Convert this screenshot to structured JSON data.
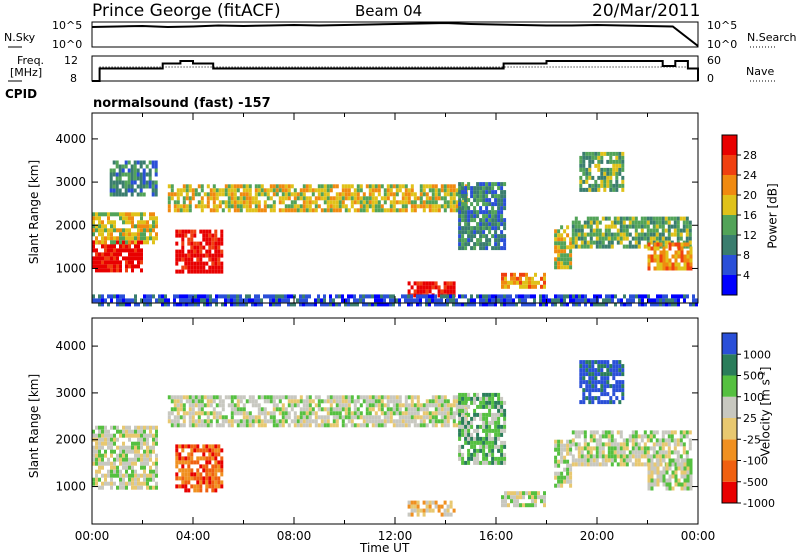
{
  "header": {
    "station": "Prince George (fitACF)",
    "beam": "Beam 04",
    "date": "20/Mar/2011"
  },
  "top_panels": {
    "nsky_label": "N.Sky",
    "nsky_ticks": [
      "10^5",
      "10^0"
    ],
    "nsearch_label": "N.Search",
    "nsearch_ticks": [
      "10^5",
      "10^0"
    ],
    "freq_label": "Freq.",
    "freq_unit": "[MHz]",
    "freq_ticks": [
      "12",
      "8"
    ],
    "nave_label": "Nave",
    "nave_ticks": [
      "60",
      "0"
    ],
    "cpid_label": "CPID",
    "cpid_name": "normalsound (fast) -157"
  },
  "chart_data": [
    {
      "type": "heatmap",
      "name": "power",
      "ylabel": "Slant Range [km]",
      "yticks": [
        1000,
        2000,
        3000,
        4000
      ],
      "ylim": [
        200,
        4600
      ],
      "xlim": [
        0,
        24
      ],
      "colorbar_label": "Power [dB]",
      "colorbar_ticks": [
        "4",
        "8",
        "12",
        "16",
        "20",
        "24",
        "28"
      ],
      "colors": [
        "#0000ff",
        "#2a4fd8",
        "#3a7d6e",
        "#52a358",
        "#e0c21a",
        "#f08a10",
        "#f04010",
        "#e80000"
      ],
      "echo_regions": [
        {
          "t0": 0.0,
          "t1": 2.0,
          "r0": 1000,
          "r1": 1650,
          "level": 7
        },
        {
          "t0": 0.0,
          "t1": 2.6,
          "r0": 1600,
          "r1": 2300,
          "level": 4
        },
        {
          "t0": 0.7,
          "t1": 2.5,
          "r0": 2700,
          "r1": 3500,
          "level": 2
        },
        {
          "t0": 3.3,
          "t1": 5.2,
          "r0": 900,
          "r1": 1900,
          "level": 7
        },
        {
          "t0": 3.0,
          "t1": 14.8,
          "r0": 2350,
          "r1": 2950,
          "level": 4
        },
        {
          "t0": 14.5,
          "t1": 16.3,
          "r0": 1500,
          "r1": 3000,
          "level": 2
        },
        {
          "t0": 12.5,
          "t1": 14.3,
          "r0": 400,
          "r1": 700,
          "level": 7
        },
        {
          "t0": 16.2,
          "t1": 17.9,
          "r0": 600,
          "r1": 900,
          "level": 5
        },
        {
          "t0": 18.3,
          "t1": 19.0,
          "r0": 1000,
          "r1": 2000,
          "level": 4
        },
        {
          "t0": 19.0,
          "t1": 23.7,
          "r0": 1500,
          "r1": 2200,
          "level": 3
        },
        {
          "t0": 19.3,
          "t1": 21.0,
          "r0": 2800,
          "r1": 3700,
          "level": 3
        },
        {
          "t0": 22.0,
          "t1": 23.7,
          "r0": 1000,
          "r1": 1600,
          "level": 5
        },
        {
          "t0": 0.0,
          "t1": 24.0,
          "r0": 200,
          "r1": 400,
          "level": 1
        }
      ]
    },
    {
      "type": "heatmap",
      "name": "velocity",
      "ylabel": "Slant Range [km]",
      "yticks": [
        1000,
        2000,
        3000,
        4000
      ],
      "ylim": [
        200,
        4600
      ],
      "xlabel": "Time UT",
      "xticks": [
        "00:00",
        "04:00",
        "08:00",
        "12:00",
        "16:00",
        "20:00",
        "00:00"
      ],
      "xlim": [
        0,
        24
      ],
      "colorbar_label": "Velocity [m s^-1]",
      "colorbar_ticks": [
        "1000",
        "500",
        "100",
        "25",
        "-25",
        "-100",
        "-500",
        "-1000"
      ],
      "colors": [
        "#2a4fd8",
        "#2a7d5a",
        "#55c040",
        "#c8c8c0",
        "#e8c870",
        "#f09020",
        "#f06010",
        "#e80000"
      ],
      "echo_regions": [
        {
          "t0": 0.0,
          "t1": 2.6,
          "r0": 1000,
          "r1": 2300,
          "level": 3
        },
        {
          "t0": 3.3,
          "t1": 5.2,
          "r0": 900,
          "r1": 1900,
          "level": 6
        },
        {
          "t0": 3.0,
          "t1": 14.8,
          "r0": 2350,
          "r1": 2950,
          "level": 3
        },
        {
          "t0": 14.5,
          "t1": 16.3,
          "r0": 1500,
          "r1": 3000,
          "level": 2
        },
        {
          "t0": 12.5,
          "t1": 14.3,
          "r0": 400,
          "r1": 700,
          "level": 4
        },
        {
          "t0": 16.2,
          "t1": 17.9,
          "r0": 600,
          "r1": 900,
          "level": 3
        },
        {
          "t0": 18.3,
          "t1": 19.0,
          "r0": 1000,
          "r1": 2000,
          "level": 3
        },
        {
          "t0": 19.0,
          "t1": 23.7,
          "r0": 1500,
          "r1": 2200,
          "level": 3
        },
        {
          "t0": 19.3,
          "t1": 21.0,
          "r0": 2800,
          "r1": 3700,
          "level": 0
        },
        {
          "t0": 22.0,
          "t1": 23.7,
          "r0": 1000,
          "r1": 1600,
          "level": 3
        }
      ]
    }
  ],
  "nsky_series": {
    "x": [
      0,
      1,
      2,
      3,
      4,
      5,
      6,
      7,
      8,
      9,
      10,
      11,
      12,
      13,
      14,
      15,
      16,
      17,
      18,
      19,
      20,
      21,
      22,
      23,
      24
    ],
    "values": [
      4.0,
      4.1,
      4.2,
      4.0,
      4.1,
      4.3,
      4.2,
      4.3,
      4.4,
      4.3,
      4.4,
      4.5,
      4.6,
      4.7,
      4.8,
      4.6,
      4.5,
      4.4,
      4.3,
      4.3,
      4.4,
      4.3,
      4.2,
      4.1,
      0.2
    ]
  },
  "freq_series": {
    "x": [
      0,
      0.3,
      0.5,
      2.5,
      2.8,
      3.5,
      4.0,
      4.8,
      6,
      8,
      10,
      12,
      14,
      16.0,
      16.3,
      17.8,
      18.0,
      19.8,
      20.0,
      22.4,
      22.6,
      22.9,
      23.1,
      23.6,
      24
    ],
    "values": [
      8,
      10.5,
      10.5,
      10.5,
      11.5,
      12,
      11.5,
      10.5,
      10.5,
      10.5,
      10.5,
      10.5,
      10.5,
      10.5,
      11.5,
      11.5,
      12,
      12,
      12,
      12,
      11,
      11,
      12,
      10.5,
      8
    ]
  }
}
